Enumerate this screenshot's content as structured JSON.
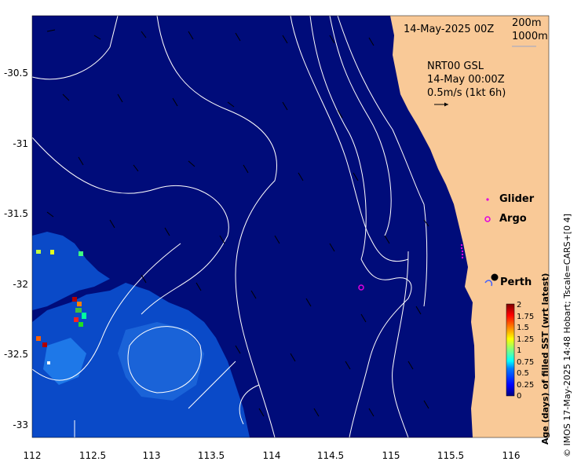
{
  "header": {
    "date": "14-May-2025 00Z",
    "contour_a": "200m",
    "contour_b": "1000m"
  },
  "current_info": {
    "source": "NRT00 GSL",
    "time": "14-May 00:00Z",
    "scale": "0.5m/s (1kt 6h)"
  },
  "legend": {
    "glider": "Glider",
    "argo": "Argo",
    "glider_color": "#e000e0",
    "argo_color": "#e000e0"
  },
  "place": {
    "perth": "Perth"
  },
  "axes": {
    "x_ticks": [
      "112",
      "112.5",
      "113",
      "113.5",
      "114",
      "114.5",
      "115",
      "115.5",
      "116"
    ],
    "y_ticks": [
      "-30.5",
      "-31",
      "-31.5",
      "-32",
      "-32.5",
      "-33"
    ]
  },
  "colorbar": {
    "title": "Age (days) of filled SST (wrt latest)",
    "ticks": [
      "2",
      "1.75",
      "1.5",
      "1.25",
      "1",
      "0.75",
      "0.5",
      "0.25",
      "0"
    ]
  },
  "credit": "© IMOS 17-May-2025 14:48 Hobart; Tscale=CARS+[0 4]",
  "colors": {
    "ocean": "#000c7a",
    "land": "#f9c997",
    "contour": "#ffffff",
    "age_low": "#0a4ac8",
    "age_mid": "#1e90ff"
  }
}
